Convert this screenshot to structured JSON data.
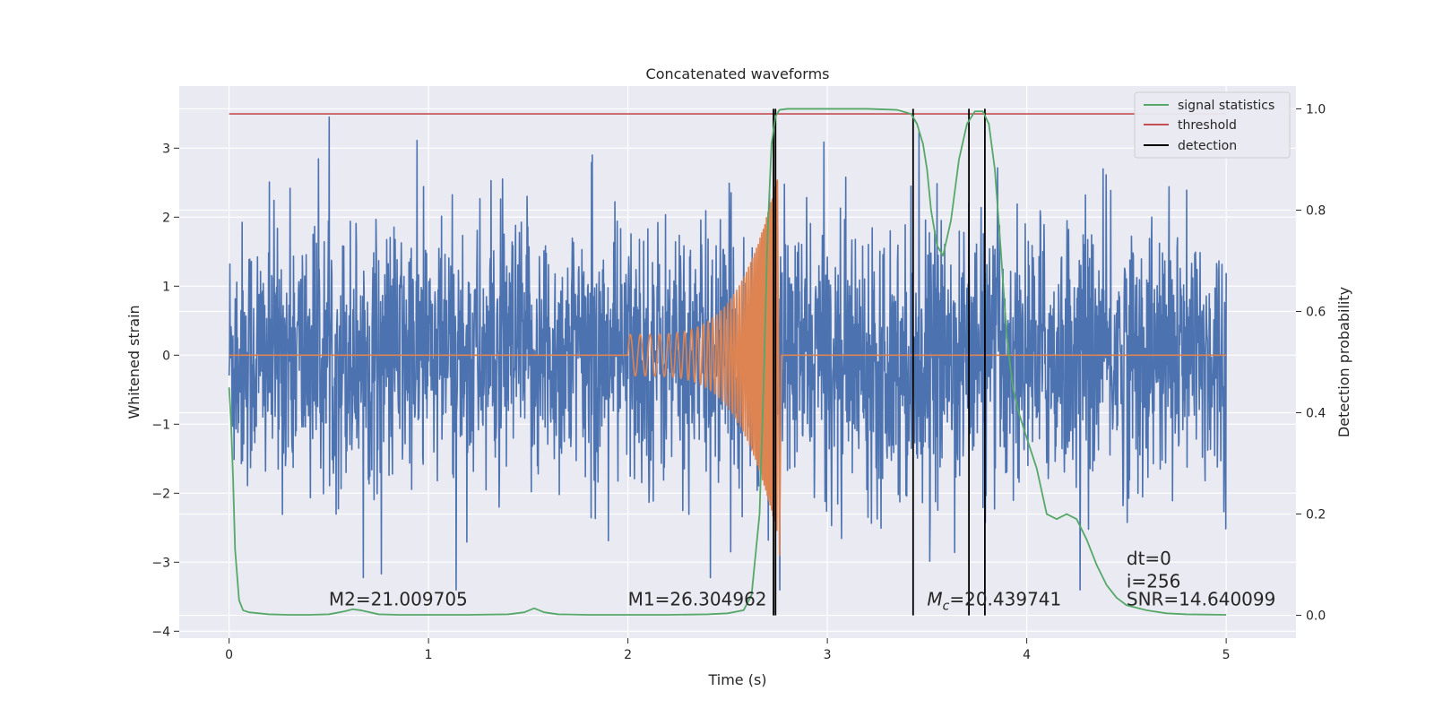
{
  "chart_data": {
    "type": "line",
    "title": "Concatenated waveforms",
    "xlabel": "Time (s)",
    "ylabel": "Whitened strain",
    "y2label": "Detection probability",
    "xlim": [
      -0.25,
      5.35
    ],
    "ylim": [
      -4.1,
      3.9
    ],
    "y2lim": [
      -0.045,
      1.045
    ],
    "xticks": [
      0,
      1,
      2,
      3,
      4,
      5
    ],
    "yticks": [
      -4,
      -3,
      -2,
      -1,
      0,
      1,
      2,
      3
    ],
    "y2ticks": [
      0.0,
      0.2,
      0.4,
      0.6,
      0.8,
      1.0
    ],
    "xtick_labels": [
      "0",
      "1",
      "2",
      "3",
      "4",
      "5"
    ],
    "ytick_labels": [
      "−4",
      "−3",
      "−2",
      "−1",
      "0",
      "1",
      "2",
      "3"
    ],
    "y2tick_labels": [
      "0.0",
      "0.2",
      "0.4",
      "0.6",
      "0.8",
      "1.0"
    ],
    "grid": true,
    "legend_position": "top-right",
    "colors": {
      "strain": "#4c72b0",
      "template": "#dd8452",
      "signal_statistics": "#55a868",
      "threshold": "#c44e52",
      "detection": "#000000",
      "background": "#eaeaf2"
    },
    "series": [
      {
        "name": "signal statistics",
        "axis": "right",
        "x": [
          0,
          0.01,
          0.02,
          0.03,
          0.05,
          0.07,
          0.1,
          0.15,
          0.2,
          0.3,
          0.4,
          0.5,
          0.58,
          0.62,
          0.66,
          0.75,
          0.85,
          1.0,
          1.2,
          1.4,
          1.48,
          1.53,
          1.58,
          1.65,
          1.8,
          2.0,
          2.2,
          2.4,
          2.5,
          2.58,
          2.62,
          2.66,
          2.68,
          2.7,
          2.72,
          2.74,
          2.76,
          2.8,
          3.0,
          3.2,
          3.35,
          3.42,
          3.45,
          3.48,
          3.5,
          3.52,
          3.55,
          3.58,
          3.62,
          3.66,
          3.7,
          3.74,
          3.78,
          3.81,
          3.84,
          3.87,
          3.9,
          3.93,
          3.96,
          4.0,
          4.05,
          4.1,
          4.15,
          4.2,
          4.25,
          4.3,
          4.35,
          4.4,
          4.45,
          4.5,
          4.6,
          4.7,
          4.8,
          5.0
        ],
        "y": [
          0.45,
          0.38,
          0.27,
          0.13,
          0.03,
          0.01,
          0.006,
          0.004,
          0.002,
          0.001,
          0.001,
          0.002,
          0.008,
          0.012,
          0.01,
          0.002,
          0.001,
          0.001,
          0.001,
          0.002,
          0.006,
          0.014,
          0.006,
          0.002,
          0.001,
          0.001,
          0.001,
          0.002,
          0.004,
          0.01,
          0.04,
          0.2,
          0.45,
          0.75,
          0.93,
          0.985,
          0.998,
          1.0,
          1.0,
          1.0,
          0.998,
          0.99,
          0.97,
          0.93,
          0.88,
          0.8,
          0.73,
          0.71,
          0.78,
          0.9,
          0.97,
          0.995,
          0.995,
          0.97,
          0.88,
          0.72,
          0.55,
          0.45,
          0.4,
          0.35,
          0.29,
          0.2,
          0.19,
          0.2,
          0.19,
          0.15,
          0.1,
          0.06,
          0.035,
          0.02,
          0.01,
          0.004,
          0.002,
          0.001
        ]
      },
      {
        "name": "threshold",
        "axis": "right",
        "x": [
          0,
          5
        ],
        "y": [
          0.99,
          0.99
        ]
      },
      {
        "name": "detection",
        "axis": "right",
        "x": [
          2.73,
          2.74,
          3.43,
          3.71,
          3.79
        ],
        "y_range": [
          0,
          1
        ]
      }
    ],
    "strain_noise": {
      "axis": "left",
      "x_range": [
        0,
        5
      ],
      "amplitude": 2.4,
      "max_peak": 3.45,
      "min_peak": -3.4
    },
    "template_chirp": {
      "axis": "left",
      "x_range": [
        2.0,
        2.75
      ],
      "peak_amplitude": 2.6
    },
    "annotations": [
      {
        "text": "M2=21.009705",
        "x": 0.5,
        "y": 0.02
      },
      {
        "text": "M1=26.304962",
        "x": 2.0,
        "y": 0.02
      },
      {
        "prefix": "M",
        "sub": "c",
        "text": "=20.439741",
        "x": 3.5,
        "y": 0.02
      },
      {
        "text": "dt=0",
        "x": 4.5,
        "y": 0.1
      },
      {
        "text": "i=256",
        "x": 4.5,
        "y": 0.055
      },
      {
        "text": "SNR=14.640099",
        "x": 4.5,
        "y": 0.02
      }
    ]
  }
}
